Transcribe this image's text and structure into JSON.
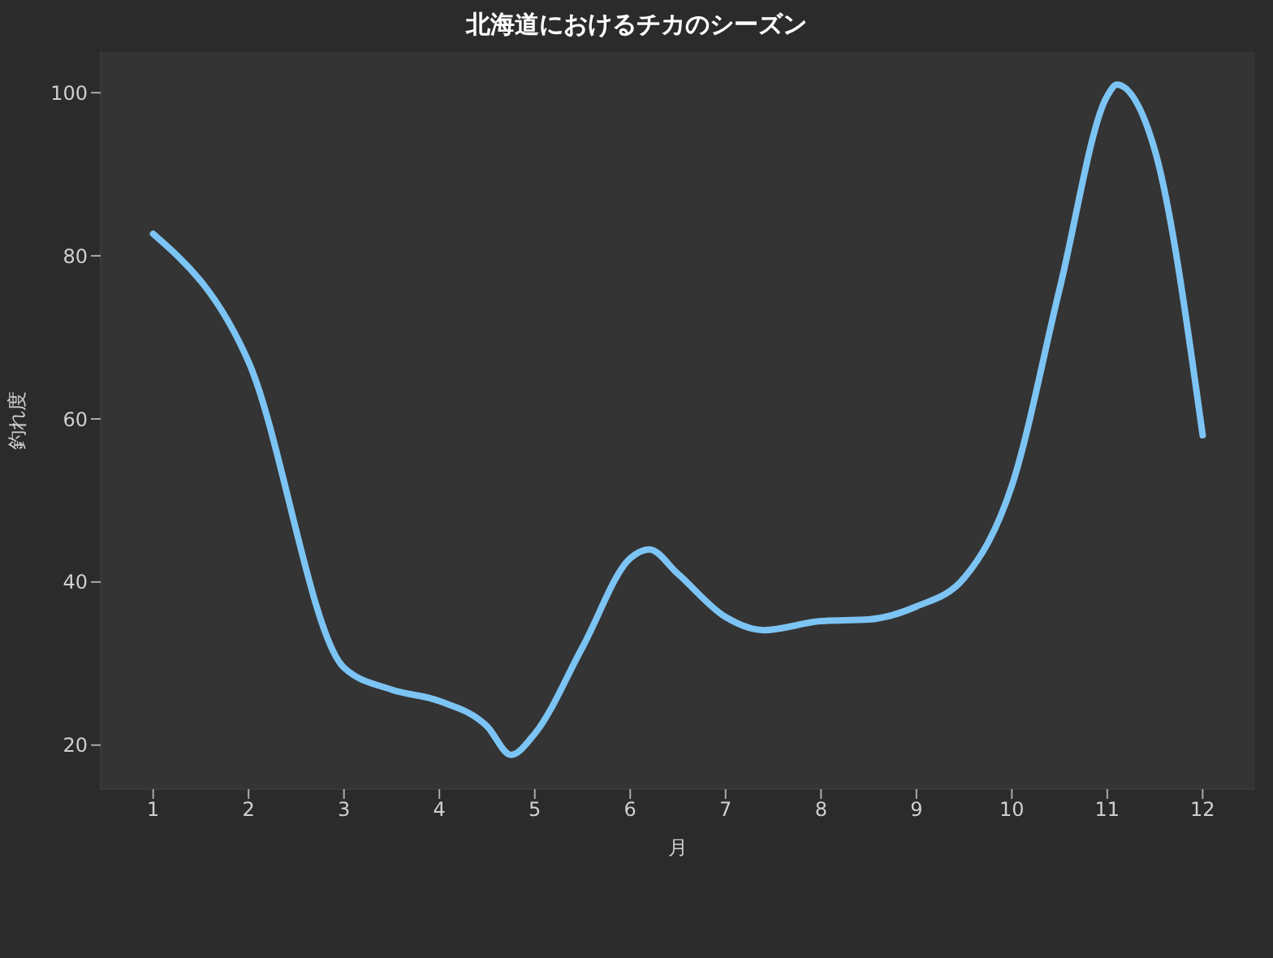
{
  "chart_data": {
    "type": "line",
    "title": "北海道におけるチカのシーズン",
    "xlabel": "月",
    "ylabel": "釣れ度",
    "series": [
      {
        "color": "#7cc4f4",
        "x": [
          1,
          2,
          3,
          3.5,
          4,
          4.5,
          4.75,
          5,
          5.5,
          6,
          6.2,
          6.5,
          7,
          7.4,
          8,
          8.5,
          9,
          9.5,
          10,
          10.5,
          11,
          11.1,
          11.5,
          12
        ],
        "values": [
          82.7,
          67,
          29.5,
          26.8,
          25.4,
          22.3,
          18.8,
          21.4,
          32,
          42.9,
          44,
          41,
          35.7,
          34.1,
          35.2,
          35.4,
          37,
          40.5,
          51.8,
          75.9,
          99.6,
          101,
          92.9,
          58
        ]
      }
    ],
    "xlim": [
      0.45,
      12.55
    ],
    "xticks": [
      1,
      2,
      3,
      4,
      5,
      6,
      7,
      8,
      9,
      10,
      11,
      12
    ],
    "ylim": [
      14.6,
      105
    ],
    "yticks": [
      20,
      40,
      60,
      80,
      100
    ],
    "grid": false,
    "legend": false,
    "marker": "none",
    "line_style": "solid"
  }
}
